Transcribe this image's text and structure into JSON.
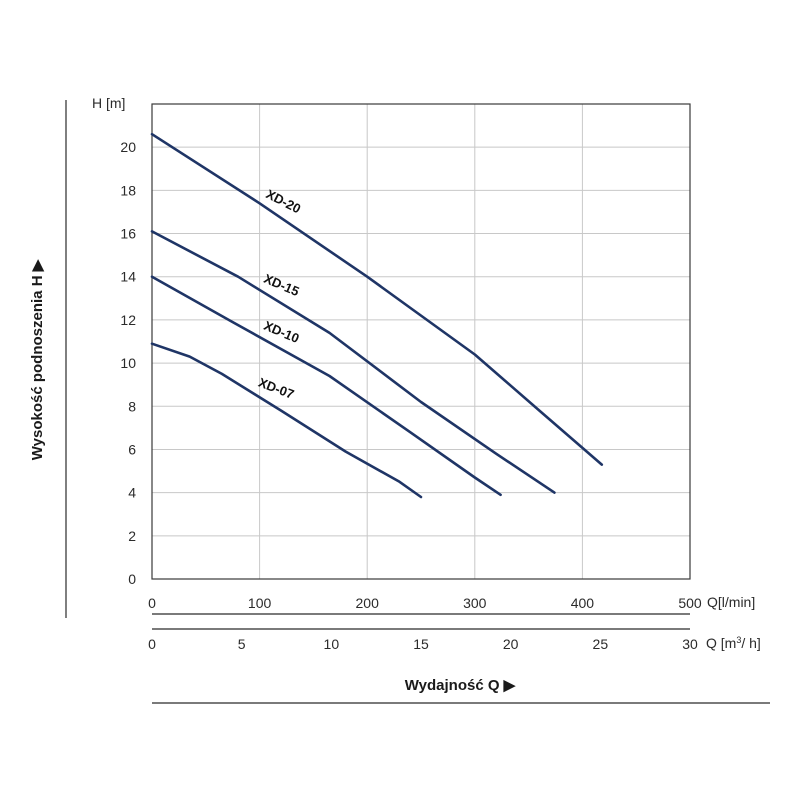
{
  "chart_data": {
    "type": "line",
    "ylabel_unit": "H [m]",
    "ylabel": "Wysokość podnoszenia H ▶",
    "xlabel": "Wydajność Q ▶",
    "x_unit_primary": "Q[l/min]",
    "x_unit_secondary": "Q [m³/ h]",
    "ylim": [
      0,
      22
    ],
    "xlim": [
      0,
      500
    ],
    "yticks": [
      "0",
      "2",
      "4",
      "6",
      "8",
      "10",
      "12",
      "14",
      "16",
      "18",
      "20"
    ],
    "xticks_primary": [
      "0",
      "100",
      "200",
      "300",
      "400",
      "500"
    ],
    "xticks_secondary": [
      "0",
      "5",
      "10",
      "15",
      "20",
      "25",
      "30"
    ],
    "grid": true,
    "line_color": "#1f3566",
    "series": [
      {
        "name": "XD-20",
        "x": [
          0,
          100,
          200,
          300,
          360,
          418
        ],
        "y": [
          20.6,
          17.4,
          14.0,
          10.4,
          7.8,
          5.3
        ]
      },
      {
        "name": "XD-15",
        "x": [
          0,
          80,
          165,
          250,
          320,
          374
        ],
        "y": [
          16.1,
          14.0,
          11.4,
          8.2,
          5.8,
          4.0
        ]
      },
      {
        "name": "XD-10",
        "x": [
          0,
          75,
          165,
          240,
          300,
          324
        ],
        "y": [
          14.0,
          11.9,
          9.4,
          6.8,
          4.7,
          3.9
        ]
      },
      {
        "name": "XD-07",
        "x": [
          0,
          35,
          65,
          120,
          180,
          230,
          250
        ],
        "y": [
          10.9,
          10.3,
          9.5,
          7.8,
          5.9,
          4.5,
          3.8
        ]
      }
    ]
  }
}
